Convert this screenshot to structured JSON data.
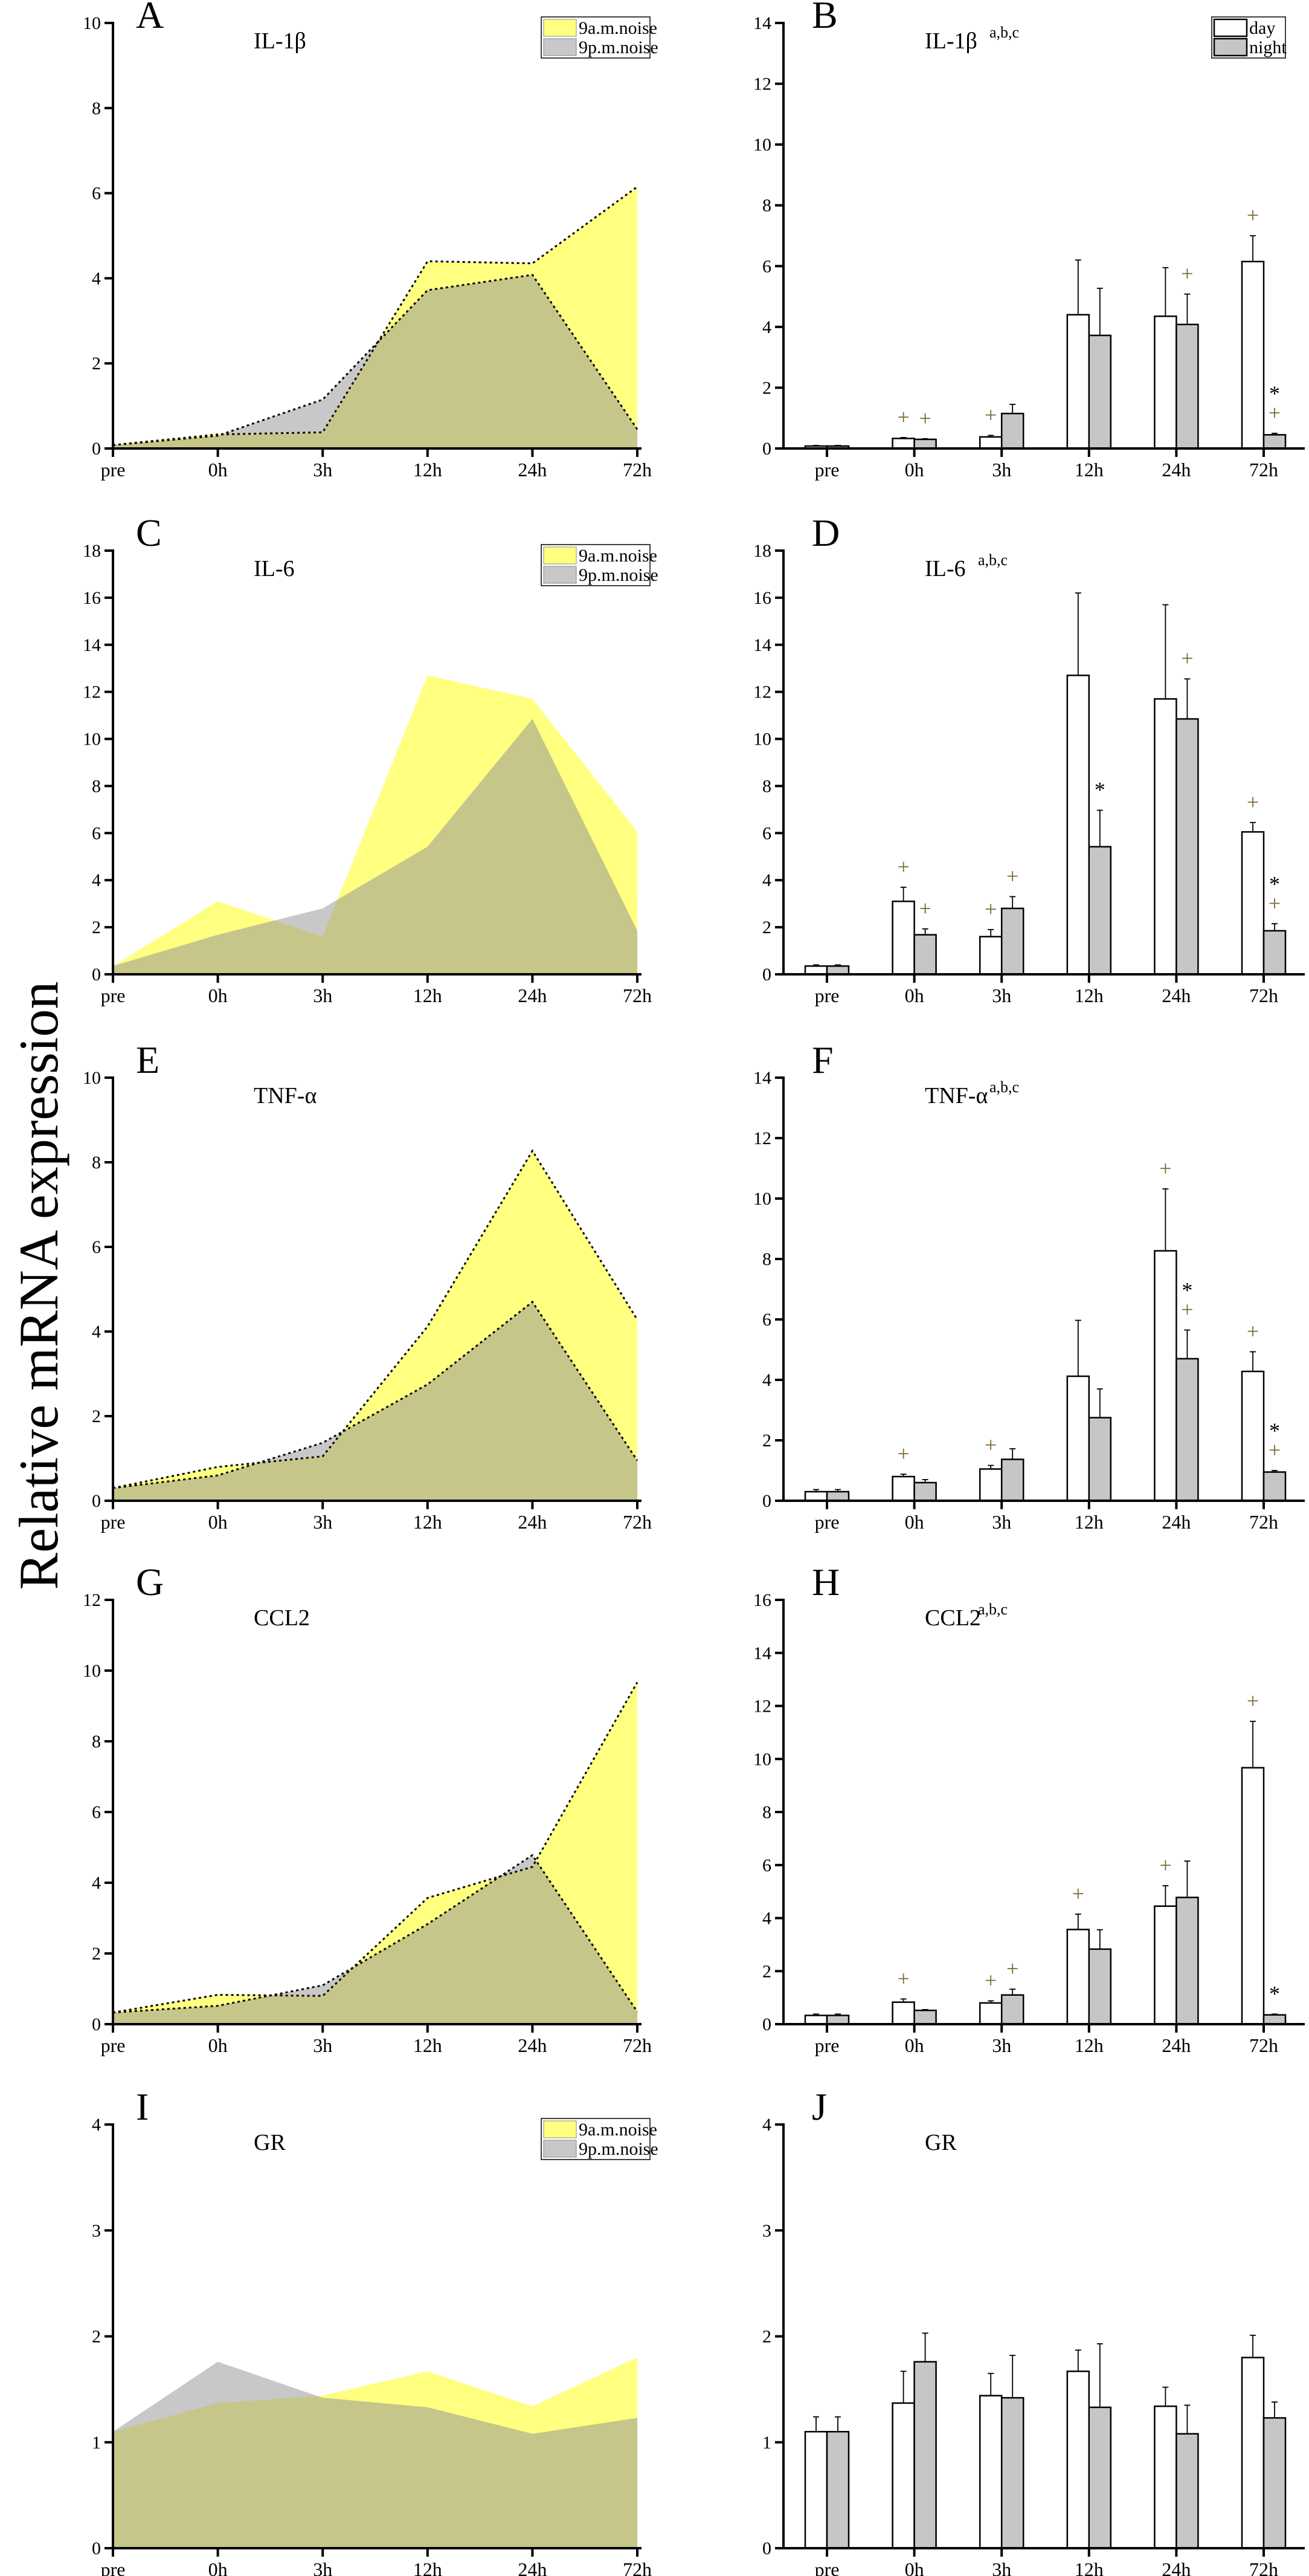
{
  "y_axis_label": "Relative mRNA expression",
  "colors": {
    "am_area": "#ffff80",
    "pm_area": "#c8c8c8",
    "overlap_area": "#c6c68a",
    "day_bar": "#ffffff",
    "night_bar": "#c6c6c6",
    "plus_marker": "#7d6b2f",
    "star_marker": "#000000"
  },
  "chart_data": [
    {
      "panel": "A",
      "type": "area",
      "title": "IL-1β",
      "title_superscript": "",
      "categories": [
        "pre",
        "0h",
        "3h",
        "12h",
        "24h",
        "72h"
      ],
      "ylim": [
        0,
        10
      ],
      "yticks": [
        0,
        2,
        4,
        6,
        8,
        10
      ],
      "legend": true,
      "dotted_outline": true,
      "series": [
        {
          "name": "9a.m.noise",
          "values": [
            0.08,
            0.33,
            0.38,
            4.4,
            4.35,
            6.15
          ]
        },
        {
          "name": "9p.m.noise",
          "values": [
            0.08,
            0.3,
            1.15,
            3.72,
            4.08,
            0.45
          ]
        }
      ]
    },
    {
      "panel": "B",
      "type": "bar",
      "title": "IL-1β",
      "title_superscript": "a,b,c",
      "categories": [
        "pre",
        "0h",
        "3h",
        "12h",
        "24h",
        "72h"
      ],
      "ylim": [
        0,
        14
      ],
      "yticks": [
        0,
        2,
        4,
        6,
        8,
        10,
        12,
        14
      ],
      "legend": true,
      "series": [
        {
          "name": "day",
          "values": [
            0.08,
            0.33,
            0.38,
            4.4,
            4.35,
            6.15
          ],
          "errors": [
            0.02,
            0.03,
            0.05,
            1.8,
            1.6,
            0.85
          ],
          "markers": [
            [],
            [
              "+"
            ],
            [
              "+"
            ],
            [],
            [],
            [
              "+"
            ]
          ]
        },
        {
          "name": "night",
          "values": [
            0.08,
            0.3,
            1.15,
            3.72,
            4.08,
            0.45
          ],
          "errors": [
            0.02,
            0.02,
            0.3,
            1.55,
            1.0,
            0.05
          ],
          "markers": [
            [],
            [
              "+"
            ],
            [],
            [],
            [
              "+"
            ],
            [
              "+",
              "*"
            ]
          ]
        }
      ]
    },
    {
      "panel": "C",
      "type": "area",
      "title": "IL-6",
      "title_superscript": "",
      "categories": [
        "pre",
        "0h",
        "3h",
        "12h",
        "24h",
        "72h"
      ],
      "ylim": [
        0,
        18
      ],
      "yticks": [
        0,
        2,
        4,
        6,
        8,
        10,
        12,
        14,
        16,
        18
      ],
      "legend": true,
      "dotted_outline": false,
      "series": [
        {
          "name": "9a.m.noise",
          "values": [
            0.35,
            3.1,
            1.6,
            12.7,
            11.7,
            6.05
          ]
        },
        {
          "name": "9p.m.noise",
          "values": [
            0.35,
            1.68,
            2.8,
            5.42,
            10.85,
            1.85
          ]
        }
      ]
    },
    {
      "panel": "D",
      "type": "bar",
      "title": "IL-6",
      "title_superscript": "a,b,c",
      "categories": [
        "pre",
        "0h",
        "3h",
        "12h",
        "24h",
        "72h"
      ],
      "ylim": [
        0,
        18
      ],
      "yticks": [
        0,
        2,
        4,
        6,
        8,
        10,
        12,
        14,
        16,
        18
      ],
      "legend": false,
      "series": [
        {
          "name": "day",
          "values": [
            0.35,
            3.1,
            1.6,
            12.7,
            11.7,
            6.05
          ],
          "errors": [
            0.05,
            0.6,
            0.3,
            3.5,
            4.0,
            0.4
          ],
          "markers": [
            [],
            [
              "+"
            ],
            [
              "+"
            ],
            [],
            [],
            [
              "+"
            ]
          ]
        },
        {
          "name": "night",
          "values": [
            0.35,
            1.68,
            2.8,
            5.42,
            10.85,
            1.85
          ],
          "errors": [
            0.05,
            0.25,
            0.5,
            1.55,
            1.7,
            0.3
          ],
          "markers": [
            [],
            [
              "+"
            ],
            [
              "+"
            ],
            [
              "*"
            ],
            [
              "+"
            ],
            [
              "+",
              "*"
            ]
          ]
        }
      ]
    },
    {
      "panel": "E",
      "type": "area",
      "title": "TNF-α",
      "title_superscript": "",
      "categories": [
        "pre",
        "0h",
        "3h",
        "12h",
        "24h",
        "72h"
      ],
      "ylim": [
        0,
        10
      ],
      "yticks": [
        0,
        2,
        4,
        6,
        8,
        10
      ],
      "legend": false,
      "dotted_outline": true,
      "series": [
        {
          "name": "9a.m.noise",
          "values": [
            0.3,
            0.8,
            1.05,
            4.12,
            8.27,
            4.28
          ]
        },
        {
          "name": "9p.m.noise",
          "values": [
            0.3,
            0.6,
            1.37,
            2.75,
            4.7,
            0.95
          ]
        }
      ]
    },
    {
      "panel": "F",
      "type": "bar",
      "title": "TNF-α",
      "title_superscript": "a,b,c",
      "categories": [
        "pre",
        "0h",
        "3h",
        "12h",
        "24h",
        "72h"
      ],
      "ylim": [
        0,
        14
      ],
      "yticks": [
        0,
        2,
        4,
        6,
        8,
        10,
        12,
        14
      ],
      "legend": false,
      "series": [
        {
          "name": "day",
          "values": [
            0.3,
            0.8,
            1.05,
            4.12,
            8.27,
            4.28
          ],
          "errors": [
            0.07,
            0.08,
            0.12,
            1.85,
            2.05,
            0.65
          ],
          "markers": [
            [],
            [
              "+"
            ],
            [
              "+"
            ],
            [],
            [
              "+"
            ],
            [
              "+"
            ]
          ]
        },
        {
          "name": "night",
          "values": [
            0.3,
            0.6,
            1.37,
            2.75,
            4.7,
            0.95
          ],
          "errors": [
            0.07,
            0.1,
            0.35,
            0.95,
            0.95,
            0.05
          ],
          "markers": [
            [],
            [],
            [],
            [],
            [
              "+",
              "*"
            ],
            [
              "+",
              "*"
            ]
          ]
        }
      ]
    },
    {
      "panel": "G",
      "type": "area",
      "title": "CCL2",
      "title_superscript": "",
      "categories": [
        "pre",
        "0h",
        "3h",
        "12h",
        "24h",
        "72h"
      ],
      "ylim": [
        0,
        12
      ],
      "yticks": [
        0,
        2,
        4,
        6,
        8,
        10,
        12
      ],
      "legend": false,
      "dotted_outline": true,
      "series": [
        {
          "name": "9a.m.noise",
          "values": [
            0.33,
            0.83,
            0.8,
            3.57,
            4.45,
            9.67
          ]
        },
        {
          "name": "9p.m.noise",
          "values": [
            0.33,
            0.52,
            1.1,
            2.83,
            4.78,
            0.35
          ]
        }
      ]
    },
    {
      "panel": "H",
      "type": "bar",
      "title": "CCL2",
      "title_superscript": "a,b,c",
      "categories": [
        "pre",
        "0h",
        "3h",
        "12h",
        "24h",
        "72h"
      ],
      "ylim": [
        0,
        16
      ],
      "yticks": [
        0,
        2,
        4,
        6,
        8,
        10,
        12,
        14,
        16
      ],
      "legend": false,
      "series": [
        {
          "name": "day",
          "values": [
            0.33,
            0.83,
            0.8,
            3.57,
            4.45,
            9.67
          ],
          "errors": [
            0.05,
            0.12,
            0.08,
            0.58,
            0.77,
            1.75
          ],
          "markers": [
            [],
            [
              "+"
            ],
            [
              "+"
            ],
            [
              "+"
            ],
            [
              "+"
            ],
            [
              "+"
            ]
          ]
        },
        {
          "name": "night",
          "values": [
            0.33,
            0.52,
            1.1,
            2.83,
            4.78,
            0.35
          ],
          "errors": [
            0.05,
            0.03,
            0.22,
            0.73,
            1.37,
            0.03
          ],
          "markers": [
            [],
            [],
            [
              "+"
            ],
            [],
            [],
            [
              "*"
            ]
          ]
        }
      ]
    },
    {
      "panel": "I",
      "type": "area",
      "title": "GR",
      "title_superscript": "",
      "categories": [
        "pre",
        "0h",
        "3h",
        "12h",
        "24h",
        "72h"
      ],
      "ylim": [
        0,
        4
      ],
      "yticks": [
        0,
        1,
        2,
        3,
        4
      ],
      "legend": true,
      "dotted_outline": false,
      "series": [
        {
          "name": "9a.m.noise",
          "values": [
            1.1,
            1.37,
            1.44,
            1.67,
            1.34,
            1.8
          ]
        },
        {
          "name": "9p.m.noise",
          "values": [
            1.1,
            1.76,
            1.42,
            1.33,
            1.08,
            1.23
          ]
        }
      ]
    },
    {
      "panel": "J",
      "type": "bar",
      "title": "GR",
      "title_superscript": "",
      "categories": [
        "pre",
        "0h",
        "3h",
        "12h",
        "24h",
        "72h"
      ],
      "ylim": [
        0,
        4
      ],
      "yticks": [
        0,
        1,
        2,
        3,
        4
      ],
      "legend": false,
      "series": [
        {
          "name": "day",
          "values": [
            1.1,
            1.37,
            1.44,
            1.67,
            1.34,
            1.8
          ],
          "errors": [
            0.14,
            0.3,
            0.21,
            0.2,
            0.18,
            0.21
          ],
          "markers": [
            [],
            [],
            [],
            [],
            [],
            []
          ]
        },
        {
          "name": "night",
          "values": [
            1.1,
            1.76,
            1.42,
            1.33,
            1.08,
            1.23
          ],
          "errors": [
            0.14,
            0.27,
            0.4,
            0.6,
            0.27,
            0.15
          ],
          "markers": [
            [],
            [],
            [],
            [],
            [],
            []
          ]
        }
      ]
    }
  ]
}
